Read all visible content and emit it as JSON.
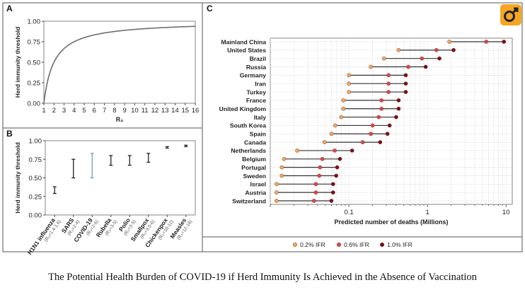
{
  "caption": "The Potential Health Burden of COVID-19 if Herd Immunity Is Achieved in the Absence of Vaccination",
  "colors": {
    "frame": "#555555",
    "curve": "#6e6e6e",
    "covid_bar": "#6f9fd0",
    "ifr_02": "#f0a860",
    "ifr_06": "#e04848",
    "ifr_10": "#7a1010",
    "dumbbell": "#333333"
  },
  "chart_data": [
    {
      "panel": "A",
      "type": "line",
      "xlabel": "R₀",
      "ylabel": "Herd immunity threshold",
      "xlim": [
        1,
        16
      ],
      "ylim": [
        0,
        1
      ],
      "xticks": [
        "1",
        "2",
        "3",
        "4",
        "5",
        "6",
        "7",
        "8",
        "9",
        "10",
        "11",
        "12",
        "13",
        "14",
        "15",
        "16"
      ],
      "yticks": [
        "0.00",
        "0.25",
        "0.50",
        "0.75",
        "1.00"
      ],
      "series": [
        {
          "x": [
            1,
            1.25,
            1.5,
            2,
            2.5,
            3,
            4,
            5,
            6,
            8,
            10,
            12,
            14,
            16
          ],
          "y": [
            0,
            0.2,
            0.333,
            0.5,
            0.6,
            0.667,
            0.75,
            0.8,
            0.833,
            0.875,
            0.9,
            0.917,
            0.929,
            0.938
          ]
        }
      ]
    },
    {
      "panel": "B",
      "type": "errorbar",
      "ylabel": "Herd immunity threshold",
      "ylim": [
        0,
        1
      ],
      "yticks": [
        "0.00",
        "0.25",
        "0.50",
        "0.75",
        "1.00"
      ],
      "categories": [
        {
          "name": "H1N1 influenza",
          "r0": "(R₀=1.4-1.6)",
          "low": 0.29,
          "high": 0.38
        },
        {
          "name": "SARS",
          "r0": "(R₀=2-4)",
          "low": 0.5,
          "high": 0.75
        },
        {
          "name": "COVID-19",
          "r0": "(R₀=2-6)",
          "low": 0.5,
          "high": 0.83,
          "highlight": true
        },
        {
          "name": "Rubella",
          "r0": "(R₀=3-5)",
          "low": 0.67,
          "high": 0.8
        },
        {
          "name": "Polio",
          "r0": "(R₀=3-5)",
          "low": 0.67,
          "high": 0.8
        },
        {
          "name": "Smallpox",
          "r0": "(R₀=3.5-6)",
          "low": 0.71,
          "high": 0.83
        },
        {
          "name": "Chickenpox",
          "r0": "(R₀=10-12)",
          "low": 0.9,
          "high": 0.92
        },
        {
          "name": "Measles",
          "r0": "(R₀=12-18)",
          "low": 0.92,
          "high": 0.94
        }
      ]
    },
    {
      "panel": "C",
      "type": "dumbbell",
      "xlabel": "Predicted number of deaths (Millions)",
      "xscale": "log",
      "xlim": [
        0.01,
        12
      ],
      "xticks": [
        "0.1",
        "1",
        "10"
      ],
      "legend_position": "bottom",
      "series_names": [
        "0.2% IFR",
        "0.6% IFR",
        "1.0% IFR"
      ],
      "countries": [
        {
          "name": "Mainland China",
          "values": [
            1.9,
            5.6,
            9.4
          ]
        },
        {
          "name": "United States",
          "values": [
            0.43,
            1.3,
            2.15
          ]
        },
        {
          "name": "Brazil",
          "values": [
            0.28,
            0.85,
            1.42
          ]
        },
        {
          "name": "Russia",
          "values": [
            0.19,
            0.57,
            0.95
          ]
        },
        {
          "name": "Germany",
          "values": [
            0.1,
            0.32,
            0.53
          ]
        },
        {
          "name": "Iran",
          "values": [
            0.1,
            0.32,
            0.53
          ]
        },
        {
          "name": "Turkey",
          "values": [
            0.1,
            0.32,
            0.53
          ]
        },
        {
          "name": "France",
          "values": [
            0.085,
            0.26,
            0.43
          ]
        },
        {
          "name": "United Kingdom",
          "values": [
            0.085,
            0.26,
            0.43
          ]
        },
        {
          "name": "Italy",
          "values": [
            0.08,
            0.24,
            0.4
          ]
        },
        {
          "name": "South Korea",
          "values": [
            0.067,
            0.2,
            0.33
          ]
        },
        {
          "name": "Spain",
          "values": [
            0.06,
            0.19,
            0.31
          ]
        },
        {
          "name": "Canada",
          "values": [
            0.049,
            0.15,
            0.25
          ]
        },
        {
          "name": "Netherlands",
          "values": [
            0.022,
            0.066,
            0.11
          ]
        },
        {
          "name": "Belgium",
          "values": [
            0.015,
            0.046,
            0.077
          ]
        },
        {
          "name": "Portugal",
          "values": [
            0.014,
            0.043,
            0.071
          ]
        },
        {
          "name": "Sweden",
          "values": [
            0.014,
            0.042,
            0.069
          ]
        },
        {
          "name": "Israel",
          "values": [
            0.012,
            0.038,
            0.063
          ]
        },
        {
          "name": "Austria",
          "values": [
            0.012,
            0.038,
            0.063
          ]
        },
        {
          "name": "Switzerland",
          "values": [
            0.012,
            0.036,
            0.06
          ]
        }
      ]
    }
  ]
}
